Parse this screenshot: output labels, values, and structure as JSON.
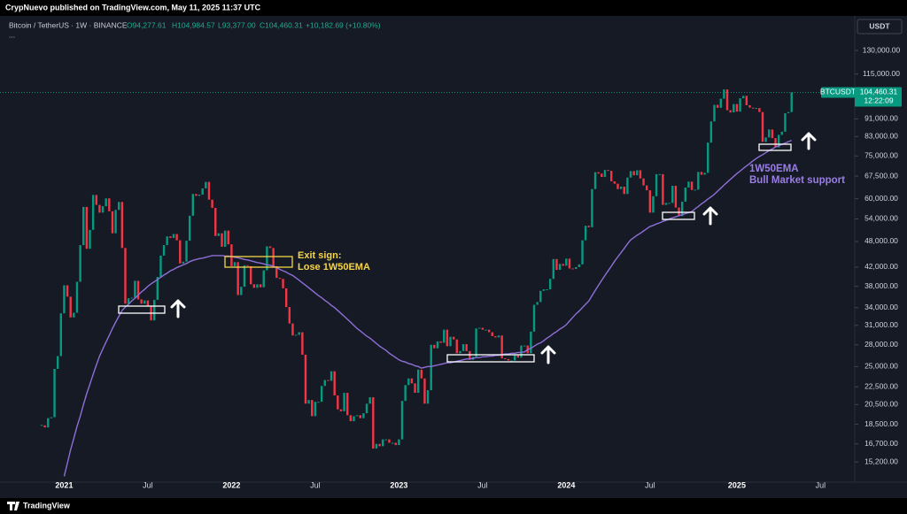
{
  "header": {
    "publisher": "CrypNuevo published on TradingView.com, May 11, 2025 11:37 UTC"
  },
  "footer": {
    "brand": "TradingView"
  },
  "chart_data": {
    "type": "candlestick",
    "symbol": "Bitcoin / TetherUS · 1W · BINANCE",
    "ohlc_legend": [
      "O94,277.61",
      "H104,984.57",
      "L93,377.00",
      "C104,460.31",
      "+10,182.69 (+10.80%)"
    ],
    "more": "...",
    "currency": "USDT",
    "price_tag": {
      "price": "104,460.31",
      "countdown": "12:22:09"
    },
    "exit_note": [
      "Exit sign:",
      "Lose 1W50EMA"
    ],
    "ema_note": "Bull Market support",
    "log_scale": true,
    "grid": false,
    "ylim": [
      14000,
      140000
    ],
    "yticks": [
      {
        "value": 15200,
        "label": "15,200.00"
      },
      {
        "value": 16700,
        "label": "16,700.00"
      },
      {
        "value": 18500,
        "label": "18,500.00"
      },
      {
        "value": 20500,
        "label": "20,500.00"
      },
      {
        "value": 22500,
        "label": "22,500.00"
      },
      {
        "value": 25000,
        "label": "25,000.00"
      },
      {
        "value": 28000,
        "label": "28,000.00"
      },
      {
        "value": 31000,
        "label": "31,000.00"
      },
      {
        "value": 34000,
        "label": "34,000.00"
      },
      {
        "value": 38000,
        "label": "38,000.00"
      },
      {
        "value": 42000,
        "label": "42,000.00"
      },
      {
        "value": 48000,
        "label": "48,000.00"
      },
      {
        "value": 54000,
        "label": "54,000.00"
      },
      {
        "value": 60000,
        "label": "60,000.00"
      },
      {
        "value": 67500,
        "label": "67,500.00"
      },
      {
        "value": 75000,
        "label": "75,000.00"
      },
      {
        "value": 83000,
        "label": "83,000.00"
      },
      {
        "value": 91000,
        "label": "91,000.00"
      },
      {
        "value": 115000,
        "label": "115,000.00"
      },
      {
        "value": 130000,
        "label": "130,000.00"
      }
    ],
    "categories": [
      null,
      null,
      null,
      null,
      null,
      null,
      null,
      "2021",
      null,
      null,
      null,
      null,
      null,
      null,
      null,
      null,
      null,
      null,
      null,
      null,
      null,
      null,
      null,
      null,
      null,
      null,
      null,
      null,
      null,
      null,
      null,
      null,
      null,
      "Jul",
      null,
      null,
      null,
      null,
      null,
      null,
      null,
      null,
      null,
      null,
      null,
      null,
      null,
      null,
      null,
      null,
      null,
      null,
      null,
      null,
      null,
      null,
      null,
      null,
      null,
      "2022",
      null,
      null,
      null,
      null,
      null,
      null,
      null,
      null,
      null,
      null,
      null,
      null,
      null,
      null,
      null,
      null,
      null,
      null,
      null,
      null,
      null,
      null,
      null,
      null,
      null,
      "Jul",
      null,
      null,
      null,
      null,
      null,
      null,
      null,
      null,
      null,
      null,
      null,
      null,
      null,
      null,
      null,
      null,
      null,
      null,
      null,
      null,
      null,
      null,
      null,
      null,
      null,
      "2023",
      null,
      null,
      null,
      null,
      null,
      null,
      null,
      null,
      null,
      null,
      null,
      null,
      null,
      null,
      null,
      null,
      null,
      null,
      null,
      null,
      null,
      null,
      null,
      null,
      null,
      "Jul",
      null,
      null,
      null,
      null,
      null,
      null,
      null,
      null,
      null,
      null,
      null,
      null,
      null,
      null,
      null,
      null,
      null,
      null,
      null,
      null,
      null,
      null,
      null,
      null,
      null,
      "2024",
      null,
      null,
      null,
      null,
      null,
      null,
      null,
      null,
      null,
      null,
      null,
      null,
      null,
      null,
      null,
      null,
      null,
      null,
      null,
      null,
      null,
      null,
      null,
      null,
      null,
      "Jul",
      null,
      null,
      null,
      null,
      null,
      null,
      null,
      null,
      null,
      null,
      null,
      null,
      null,
      null,
      null,
      null,
      null,
      null,
      null,
      null,
      null,
      null,
      null,
      null,
      null,
      null,
      "2025",
      null,
      null,
      null,
      null,
      null,
      null,
      null,
      null,
      null,
      null,
      null,
      null,
      null,
      null,
      null,
      null,
      null,
      null,
      null,
      null,
      null,
      null,
      null,
      null,
      null,
      "Jul"
    ],
    "series": [
      {
        "name": "BTCUSDT",
        "up_color": "#089981",
        "down_color": "#f23645",
        "values": [
          18400,
          18200,
          19100,
          19200,
          24700,
          26400,
          33000,
          38200,
          36000,
          32300,
          33100,
          38900,
          47100,
          57500,
          46200,
          51000,
          61200,
          58100,
          55800,
          57700,
          60100,
          56200,
          50100,
          56600,
          59000,
          46400,
          34700,
          35700,
          35800,
          39100,
          35500,
          34700,
          35300,
          34300,
          31800,
          35400,
          39900,
          44600,
          47100,
          49300,
          48900,
          49900,
          48300,
          42800,
          43200,
          48200,
          54900,
          61500,
          60900,
          61300,
          63300,
          65500,
          59700,
          57200,
          49400,
          50100,
          46700,
          50800,
          47300,
          42200,
          43100,
          36300,
          37900,
          42400,
          42200,
          38400,
          37700,
          38400,
          37800,
          41300,
          46800,
          46400,
          42200,
          39700,
          39500,
          37600,
          34100,
          31300,
          29400,
          29500,
          29900,
          26600,
          20600,
          21000,
          19300,
          20800,
          20800,
          22600,
          23300,
          23200,
          24400,
          21500,
          20000,
          19800,
          21800,
          19400,
          18800,
          19300,
          19400,
          19100,
          19600,
          20600,
          21300,
          16300,
          16700,
          16500,
          17100,
          17100,
          16800,
          16800,
          16600,
          17100,
          20900,
          22700,
          23500,
          22900,
          21800,
          24600,
          23500,
          20600,
          22100,
          28000,
          27500,
          28500,
          28300,
          30300,
          27800,
          29200,
          28800,
          26800,
          27100,
          28100,
          27100,
          25900,
          26300,
          30500,
          30600,
          30300,
          30300,
          29900,
          29300,
          29100,
          29400,
          26100,
          26000,
          25800,
          25800,
          26500,
          26200,
          27900,
          27900,
          26800,
          30000,
          34500,
          35000,
          37100,
          37400,
          37400,
          39500,
          43800,
          41400,
          42700,
          42300,
          43900,
          41700,
          41600,
          42000,
          42600,
          48300,
          52100,
          51700,
          63100,
          68900,
          68400,
          67200,
          69700,
          69400,
          65700,
          64900,
          63100,
          63900,
          61500,
          67000,
          69300,
          67800,
          69600,
          66700,
          64300,
          62700,
          55800,
          60800,
          68200,
          68200,
          58100,
          58700,
          58700,
          64200,
          57300,
          54800,
          59100,
          63600,
          65600,
          62800,
          62900,
          69000,
          68000,
          68700,
          80400,
          89800,
          97900,
          96400,
          101100,
          106100,
          95200,
          94100,
          98300,
          94500,
          101300,
          102600,
          97700,
          96500,
          96100,
          96300,
          94300,
          80700,
          82600,
          86100,
          82300,
          78400,
          83700,
          85100,
          93700,
          94277.61,
          104460.31,
          null,
          null,
          null,
          null,
          null,
          null,
          null,
          null,
          null
        ]
      },
      {
        "name": "1W50EMA",
        "color": "#8e6fd8",
        "values": [
          null,
          null,
          null,
          null,
          null,
          null,
          null,
          14100,
          15100,
          16200,
          17200,
          18300,
          19300,
          20500,
          21700,
          22800,
          24000,
          25200,
          26400,
          27400,
          28400,
          29400,
          30500,
          31500,
          32500,
          33500,
          34100,
          34600,
          35200,
          35700,
          36300,
          36900,
          37400,
          38000,
          38500,
          38900,
          39400,
          39800,
          40300,
          40700,
          41200,
          41500,
          41900,
          42200,
          42500,
          42800,
          43200,
          43500,
          43700,
          43900,
          44000,
          44200,
          44400,
          44600,
          44600,
          44600,
          44600,
          44500,
          44500,
          44400,
          44200,
          44100,
          43900,
          43700,
          43600,
          43400,
          43200,
          43000,
          42900,
          42700,
          42500,
          42400,
          42200,
          41900,
          41500,
          41200,
          40900,
          40500,
          40200,
          39700,
          39200,
          38700,
          38200,
          37700,
          37200,
          36700,
          36200,
          35800,
          35300,
          34900,
          34400,
          34000,
          33500,
          33000,
          32500,
          32000,
          31500,
          31000,
          30500,
          30100,
          29700,
          29300,
          29000,
          28600,
          28200,
          27800,
          27500,
          27200,
          26800,
          26500,
          26200,
          25900,
          25700,
          25600,
          25400,
          25300,
          25100,
          25000,
          24800,
          24900,
          25000,
          25000,
          25100,
          25200,
          25300,
          25400,
          25500,
          25500,
          25600,
          25700,
          25800,
          25900,
          26000,
          26000,
          26100,
          26200,
          26200,
          26300,
          26300,
          26400,
          26400,
          26500,
          26500,
          26600,
          26700,
          26700,
          26800,
          26800,
          26900,
          26900,
          27000,
          27300,
          27500,
          27800,
          28100,
          28300,
          28600,
          29000,
          29300,
          29700,
          30000,
          30400,
          30700,
          31100,
          31700,
          32300,
          32900,
          33400,
          34000,
          34600,
          35200,
          36200,
          37200,
          38200,
          39200,
          40200,
          41200,
          42200,
          43300,
          44300,
          45300,
          46300,
          47400,
          48400,
          49000,
          49600,
          50100,
          50700,
          51300,
          51900,
          52200,
          52600,
          52900,
          53300,
          53600,
          54000,
          54300,
          54600,
          54900,
          55200,
          55500,
          55800,
          56100,
          56900,
          57600,
          58400,
          59100,
          59900,
          60600,
          61400,
          62400,
          63400,
          64400,
          65400,
          66400,
          67400,
          68400,
          69300,
          70300,
          71200,
          72100,
          73100,
          74000,
          74800,
          75500,
          76300,
          77100,
          77800,
          78600,
          79100,
          79700,
          80200,
          80800,
          81300,
          null,
          null,
          null,
          null,
          null,
          null,
          null,
          null,
          null
        ]
      }
    ]
  }
}
